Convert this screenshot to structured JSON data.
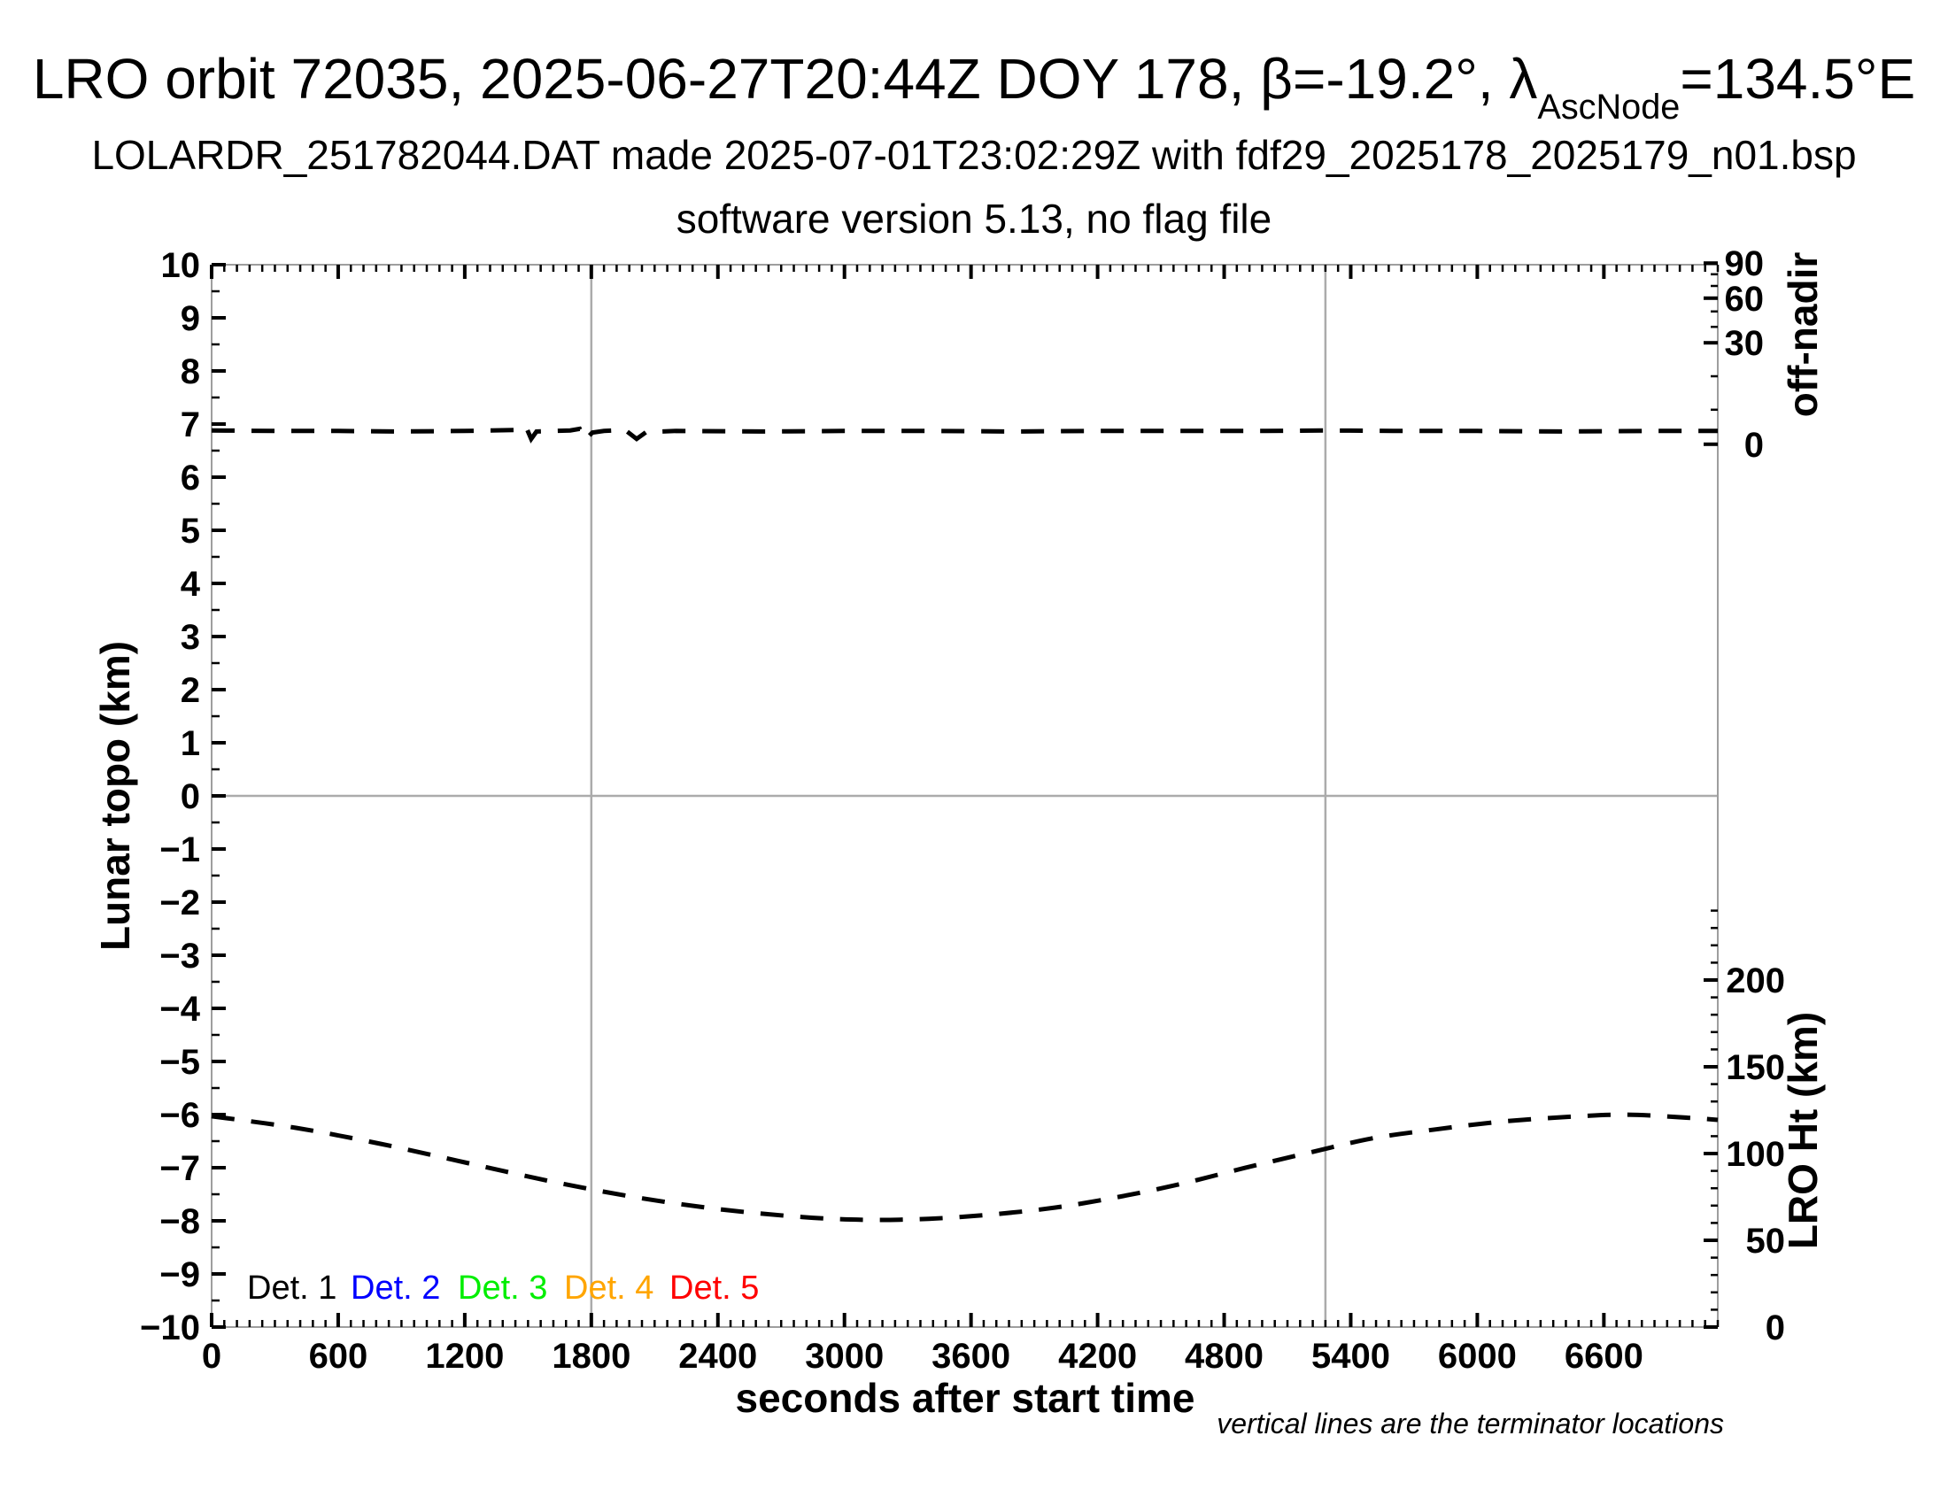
{
  "title": {
    "text_before_sub": "LRO orbit 72035, 2025-06-27T20:44Z DOY 178, β=-19.2°, λ",
    "subscript": "AscNode",
    "text_after_sub": "=134.5°E"
  },
  "subtitle1": "LOLARDR_251782044.DAT made 2025-07-01T23:02:29Z with fdf29_2025178_2025179_n01.bsp",
  "subtitle2": "software version 5.13, no flag file",
  "footnote": "vertical lines are the terminator locations",
  "legend": {
    "items": [
      {
        "label": "Det. 1",
        "color": "#000000"
      },
      {
        "label": "Det. 2",
        "color": "#0000ff"
      },
      {
        "label": "Det. 3",
        "color": "#00ee00"
      },
      {
        "label": "Det. 4",
        "color": "#ffa500"
      },
      {
        "label": "Det. 5",
        "color": "#ff0000"
      }
    ]
  },
  "colors": {
    "axis_border": "#9e9e9e",
    "reference_line": "#ababab",
    "tick": "#000000",
    "curve": "#000000"
  },
  "chart_data": {
    "type": "line",
    "title": "LRO orbit 72035, 2025-06-27T20:44Z DOY 178, β=-19.2°, λAscNode=134.5°E",
    "x_axis": {
      "label": "seconds after start time",
      "min": 0,
      "max": 7140,
      "major_tick_interval": 600,
      "minor_tick_interval": 60,
      "tick_labels": [
        "0",
        "600",
        "1200",
        "1800",
        "2400",
        "3000",
        "3600",
        "4200",
        "4800",
        "5400",
        "6000",
        "6600"
      ]
    },
    "y_axis_left": {
      "label": "Lunar topo (km)",
      "min": -10,
      "max": 10,
      "major_tick_interval": 1,
      "minor_tick_interval": 0.5
    },
    "y_axis_right_top": {
      "label": "off-nadir",
      "major_ticks": [
        {
          "label": "90",
          "topo_pos": 10.03
        },
        {
          "label": "60",
          "topo_pos": 9.37
        },
        {
          "label": "30",
          "topo_pos": 8.53
        },
        {
          "label": "0",
          "topo_pos": 6.62
        }
      ],
      "minor_ticks_topo_pos": [
        9.82,
        9.6,
        9.12,
        8.83,
        7.9,
        7.27
      ]
    },
    "y_axis_right_bottom": {
      "label": "LRO Ht (km)",
      "major_ticks": [
        {
          "label": "200",
          "km": 200
        },
        {
          "label": "150",
          "km": 150
        },
        {
          "label": "100",
          "km": 100
        },
        {
          "label": "50",
          "km": 50
        },
        {
          "label": "0",
          "km": 0
        }
      ],
      "minor_tick_interval_km": 10,
      "minor_tick_max_km": 240,
      "topo_at_zero_km": -10,
      "topo_per_km": 0.0326667
    },
    "reference_lines": {
      "horizontal_topo_zero": 0,
      "terminator_times_s": [
        1800,
        5280
      ]
    },
    "series": [
      {
        "name": "off-nadir angle",
        "axis": "left_topo_units",
        "style": "dashed",
        "color": "#000000",
        "points": [
          [
            0,
            6.88
          ],
          [
            300,
            6.87
          ],
          [
            600,
            6.87
          ],
          [
            900,
            6.86
          ],
          [
            1200,
            6.87
          ],
          [
            1450,
            6.89
          ],
          [
            1490,
            6.95
          ],
          [
            1515,
            6.72
          ],
          [
            1540,
            6.86
          ],
          [
            1700,
            6.88
          ],
          [
            1745,
            6.91
          ],
          [
            1772,
            6.71
          ],
          [
            1805,
            6.84
          ],
          [
            1860,
            6.87
          ],
          [
            1960,
            6.89
          ],
          [
            2015,
            6.72
          ],
          [
            2060,
            6.85
          ],
          [
            2200,
            6.87
          ],
          [
            2600,
            6.86
          ],
          [
            3000,
            6.87
          ],
          [
            3400,
            6.87
          ],
          [
            3800,
            6.86
          ],
          [
            4200,
            6.87
          ],
          [
            4600,
            6.87
          ],
          [
            5000,
            6.87
          ],
          [
            5280,
            6.88
          ],
          [
            5600,
            6.87
          ],
          [
            6000,
            6.87
          ],
          [
            6400,
            6.86
          ],
          [
            6800,
            6.87
          ],
          [
            7140,
            6.87
          ]
        ]
      },
      {
        "name": "LRO height",
        "axis": "right_lro_ht_km",
        "style": "dashed",
        "color": "#000000",
        "points": [
          [
            0,
            121.5
          ],
          [
            400,
            114.8
          ],
          [
            800,
            105.6
          ],
          [
            1200,
            94.9
          ],
          [
            1600,
            84.2
          ],
          [
            2000,
            75.0
          ],
          [
            2400,
            68.0
          ],
          [
            2800,
            63.4
          ],
          [
            3100,
            61.8
          ],
          [
            3400,
            62.4
          ],
          [
            3700,
            64.9
          ],
          [
            4000,
            68.9
          ],
          [
            4300,
            75.0
          ],
          [
            4600,
            82.6
          ],
          [
            4900,
            91.8
          ],
          [
            5200,
            100.4
          ],
          [
            5500,
            108.7
          ],
          [
            5800,
            113.9
          ],
          [
            6100,
            118.2
          ],
          [
            6400,
            120.9
          ],
          [
            6700,
            122.4
          ],
          [
            7000,
            120.6
          ],
          [
            7140,
            119.4
          ]
        ]
      }
    ]
  }
}
